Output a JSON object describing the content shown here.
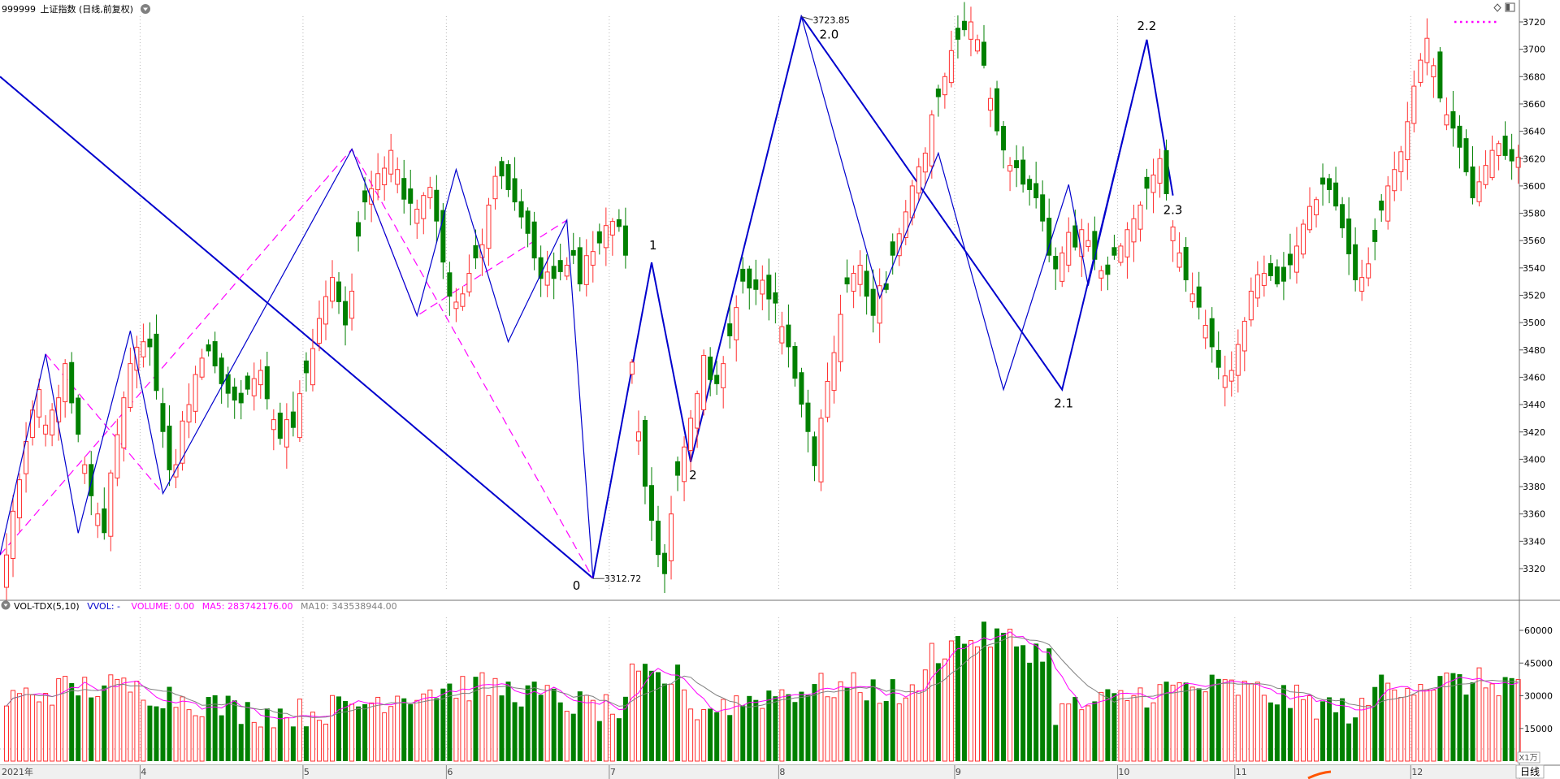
{
  "header": {
    "code": "999999",
    "name": "上证指数",
    "period_label": "(日线,前复权)"
  },
  "volume_header": {
    "indicator": "VOL-TDX(5,10)",
    "vvol_label": "VVOL: -",
    "volume_label": "VOLUME: 0.00",
    "ma5_label": "MA5: 283742176.00",
    "ma10_label": "MA10: 343538944.00"
  },
  "period_badge": "日线",
  "volume_unit": "X1万",
  "colors": {
    "up": "#ff3030",
    "down": "#008000",
    "wave": "#0000cd",
    "dashed": "#ff00ff",
    "ma5": "#ff00ff",
    "ma10": "#808080",
    "grid": "#b8b8b8"
  },
  "chart_data": {
    "type": "candlestick",
    "ylim": [
      3300,
      3730
    ],
    "y_ticks": [
      3320,
      3340,
      3360,
      3380,
      3400,
      3420,
      3440,
      3460,
      3480,
      3500,
      3520,
      3540,
      3560,
      3580,
      3600,
      3620,
      3640,
      3660,
      3680,
      3700,
      3720
    ],
    "volume_ylim": [
      0,
      70000
    ],
    "volume_ticks": [
      15000,
      30000,
      45000,
      60000
    ],
    "month_labels": [
      {
        "label": "2021年",
        "day": 0
      },
      {
        "label": "4",
        "day": 21
      },
      {
        "label": "5",
        "day": 46
      },
      {
        "label": "6",
        "day": 68
      },
      {
        "label": "7",
        "day": 93
      },
      {
        "label": "8",
        "day": 119
      },
      {
        "label": "9",
        "day": 146
      },
      {
        "label": "10",
        "day": 171
      },
      {
        "label": "11",
        "day": 189
      },
      {
        "label": "12",
        "day": 216
      }
    ],
    "closes": [
      3330,
      3362,
      3385,
      3413,
      3436,
      3451,
      3425,
      3436,
      3445,
      3470,
      3441,
      3418,
      3396,
      3373,
      3360,
      3346,
      3390,
      3418,
      3445,
      3470,
      3482,
      3486,
      3482,
      3450,
      3420,
      3392,
      3396,
      3428,
      3440,
      3462,
      3474,
      3479,
      3468,
      3455,
      3448,
      3443,
      3441,
      3451,
      3459,
      3465,
      3444,
      3429,
      3415,
      3429,
      3423,
      3448,
      3463,
      3481,
      3503,
      3519,
      3533,
      3515,
      3498,
      3523,
      3563,
      3588,
      3598,
      3609,
      3613,
      3626,
      3612,
      3590,
      3587,
      3583,
      3593,
      3599,
      3574,
      3544,
      3519,
      3515,
      3521,
      3536,
      3547,
      3557,
      3586,
      3607,
      3607,
      3597,
      3588,
      3577,
      3565,
      3547,
      3532,
      3537,
      3532,
      3537,
      3542,
      3549,
      3528,
      3549,
      3552,
      3558,
      3571,
      3574,
      3570,
      3549,
      3471,
      3420,
      3380,
      3355,
      3330,
      3316,
      3360,
      3388,
      3409,
      3430,
      3448,
      3476,
      3458,
      3455,
      3470,
      3490,
      3511,
      3530,
      3525,
      3524,
      3531,
      3517,
      3514,
      3497,
      3482,
      3459,
      3440,
      3420,
      3395,
      3430,
      3457,
      3478,
      3506,
      3528,
      3536,
      3542,
      3519,
      3505,
      3527,
      3524,
      3549,
      3565,
      3581,
      3600,
      3614,
      3624,
      3652,
      3665,
      3680,
      3699,
      3707,
      3714,
      3720,
      3707,
      3688,
      3664,
      3640,
      3626,
      3615,
      3613,
      3601,
      3597,
      3591,
      3574,
      3549,
      3539,
      3551,
      3566,
      3555,
      3568,
      3560,
      3546,
      3538,
      3535,
      3549,
      3556,
      3568,
      3576,
      3586,
      3598,
      3608,
      3620,
      3594,
      3570,
      3551,
      3531,
      3521,
      3511,
      3498,
      3482,
      3467,
      3461,
      3465,
      3484,
      3501,
      3523,
      3535,
      3536,
      3534,
      3528,
      3530,
      3542,
      3556,
      3572,
      3585,
      3590,
      3601,
      3597,
      3585,
      3569,
      3550,
      3531,
      3533,
      3543,
      3559,
      3582,
      3600,
      3612,
      3625,
      3647,
      3673,
      3692,
      3708,
      3688,
      3664,
      3652,
      3642,
      3628,
      3610,
      3591,
      3603,
      3615,
      3626,
      3631,
      3622,
      3618,
      3621
    ],
    "pivots": [
      {
        "label": "0",
        "price": 3312.72,
        "price_label": "3312.72"
      },
      {
        "label": "1",
        "price": 3544
      },
      {
        "label": "2",
        "price": 3398
      },
      {
        "label": "2.0",
        "price": 3723.85,
        "price_label": "3723.85"
      },
      {
        "label": "2.1",
        "price": 3451
      },
      {
        "label": "2.2",
        "price": 3707
      },
      {
        "label": "2.3",
        "price": 3593
      }
    ]
  }
}
